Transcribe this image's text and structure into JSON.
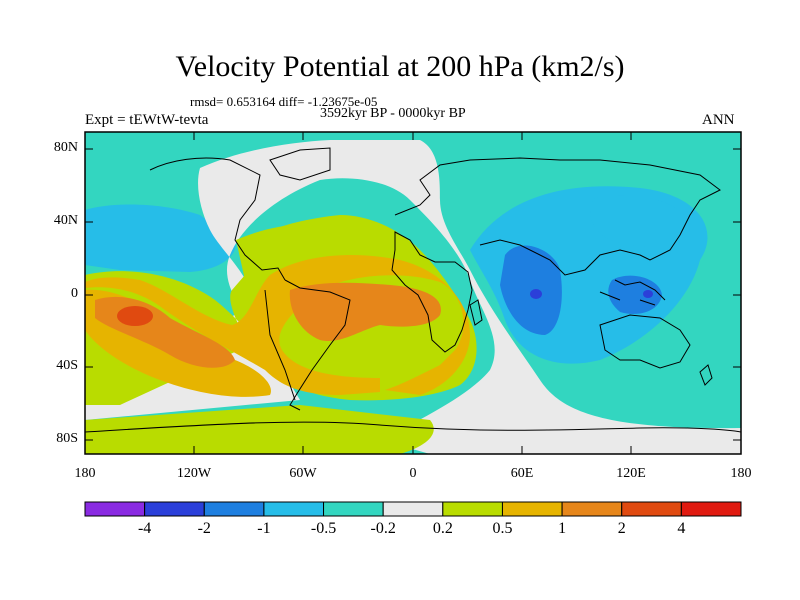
{
  "title": "Velocity Potential at 200 hPa (km2/s)",
  "stats_line": "rmsd= 0.653164 diff= -1.23675e-05",
  "period": "3592kyr BP - 0000kyr BP",
  "experiment": "Expt = tEWtW-tevta",
  "season": "ANN",
  "y_ticks": [
    "80N",
    "40N",
    "0",
    "40S",
    "80S"
  ],
  "x_ticks": [
    "180",
    "120W",
    "60W",
    "0",
    "60E",
    "120E",
    "180"
  ],
  "colorbar": {
    "labels": [
      "-4",
      "-2",
      "-1",
      "-0.5",
      "-0.2",
      "0.2",
      "0.5",
      "1",
      "2",
      "4"
    ],
    "colors": [
      "#8a2be2",
      "#2b3fd9",
      "#1e7fe0",
      "#26bde8",
      "#33d6c0",
      "#eaeaea",
      "#b9dc00",
      "#e6b400",
      "#e6861a",
      "#e04a10",
      "#e01a10"
    ]
  }
}
